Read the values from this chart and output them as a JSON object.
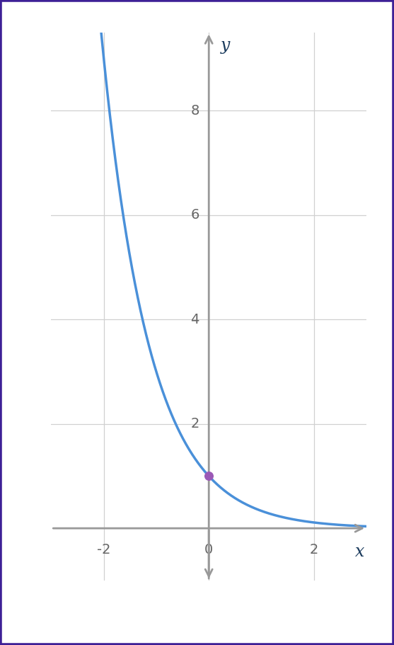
{
  "background_color": "#ffffff",
  "border_color": "#3d2096",
  "border_linewidth": 4,
  "curve_color": "#4a90d9",
  "curve_linewidth": 2.5,
  "point_color": "#9b59b6",
  "point_x": 0,
  "point_y": 1,
  "point_size": 70,
  "axis_color": "#999999",
  "axis_linewidth": 2.0,
  "grid_color": "#d0d0d0",
  "grid_linewidth": 0.9,
  "tick_label_color": "#666666",
  "tick_fontsize": 14,
  "axis_label_fontsize": 17,
  "axis_label_color": "#1a3a5c",
  "x_label": "x",
  "y_label": "y",
  "xlim": [
    -3.0,
    3.0
  ],
  "ylim": [
    -1.0,
    9.5
  ],
  "x_ticks": [
    -2,
    0,
    2
  ],
  "y_ticks": [
    2,
    4,
    6,
    8
  ],
  "base": 0.3333333333333333,
  "x_range_start": -2.3,
  "x_range_end": 3.0,
  "fig_width": 5.57,
  "fig_height": 9.11,
  "dpi": 100
}
